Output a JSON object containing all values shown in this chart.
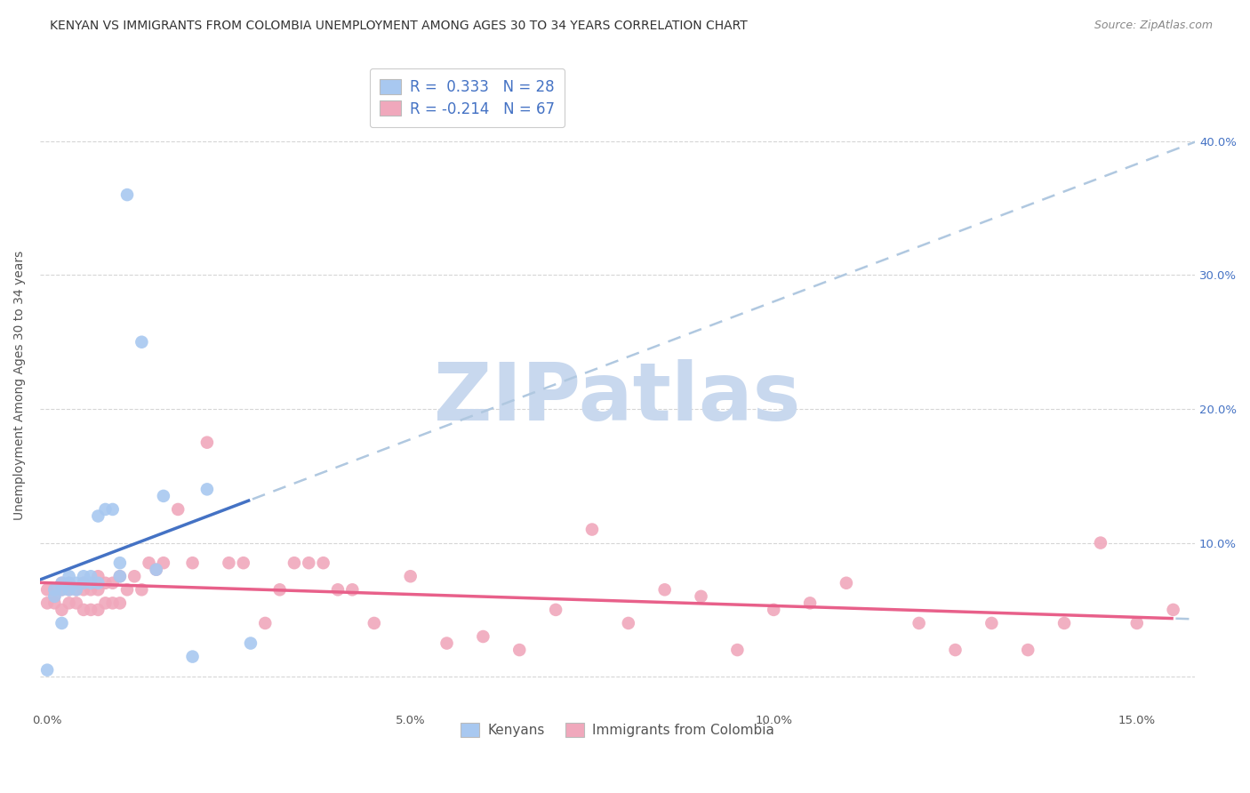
{
  "title": "KENYAN VS IMMIGRANTS FROM COLOMBIA UNEMPLOYMENT AMONG AGES 30 TO 34 YEARS CORRELATION CHART",
  "source": "Source: ZipAtlas.com",
  "ylabel": "Unemployment Among Ages 30 to 34 years",
  "xlim": [
    -0.001,
    0.158
  ],
  "ylim": [
    -0.025,
    0.46
  ],
  "xlabel_ticks": [
    0.0,
    0.05,
    0.1,
    0.15
  ],
  "xlabel_labels": [
    "0.0%",
    "5.0%",
    "10.0%",
    "15.0%"
  ],
  "ylabel_ticks": [
    0.0,
    0.1,
    0.2,
    0.3,
    0.4
  ],
  "ylabel_right_labels": [
    "",
    "10.0%",
    "20.0%",
    "30.0%",
    "40.0%"
  ],
  "kenyan_color": "#a8c8f0",
  "colombia_color": "#f0a8bc",
  "kenyan_line_color": "#4472c4",
  "colombia_line_color": "#e8608a",
  "dashed_line_color": "#b0c8e0",
  "title_fontsize": 10,
  "source_fontsize": 9,
  "axis_label_fontsize": 10,
  "tick_fontsize": 9.5,
  "legend_fontsize": 12,
  "legend_entry1": "R =  0.333   N = 28",
  "legend_entry2": "R = -0.214   N = 67",
  "kenyan_x": [
    0.0,
    0.001,
    0.001,
    0.002,
    0.002,
    0.002,
    0.003,
    0.003,
    0.003,
    0.004,
    0.004,
    0.005,
    0.005,
    0.006,
    0.006,
    0.007,
    0.007,
    0.008,
    0.009,
    0.01,
    0.01,
    0.011,
    0.013,
    0.015,
    0.016,
    0.02,
    0.022,
    0.028
  ],
  "kenyan_y": [
    0.005,
    0.06,
    0.065,
    0.04,
    0.065,
    0.07,
    0.065,
    0.07,
    0.075,
    0.065,
    0.07,
    0.07,
    0.075,
    0.07,
    0.075,
    0.07,
    0.12,
    0.125,
    0.125,
    0.075,
    0.085,
    0.36,
    0.25,
    0.08,
    0.135,
    0.015,
    0.14,
    0.025
  ],
  "colombia_x": [
    0.0,
    0.0,
    0.001,
    0.001,
    0.001,
    0.002,
    0.002,
    0.002,
    0.003,
    0.003,
    0.003,
    0.004,
    0.004,
    0.005,
    0.005,
    0.005,
    0.006,
    0.006,
    0.007,
    0.007,
    0.007,
    0.008,
    0.008,
    0.009,
    0.009,
    0.01,
    0.01,
    0.011,
    0.012,
    0.013,
    0.014,
    0.015,
    0.016,
    0.018,
    0.02,
    0.022,
    0.025,
    0.027,
    0.03,
    0.032,
    0.034,
    0.036,
    0.038,
    0.04,
    0.042,
    0.045,
    0.05,
    0.055,
    0.06,
    0.065,
    0.07,
    0.075,
    0.08,
    0.085,
    0.09,
    0.095,
    0.1,
    0.105,
    0.11,
    0.12,
    0.125,
    0.13,
    0.135,
    0.14,
    0.145,
    0.15,
    0.155
  ],
  "colombia_y": [
    0.055,
    0.065,
    0.055,
    0.06,
    0.065,
    0.05,
    0.065,
    0.07,
    0.055,
    0.065,
    0.07,
    0.055,
    0.065,
    0.05,
    0.065,
    0.07,
    0.05,
    0.065,
    0.05,
    0.065,
    0.075,
    0.055,
    0.07,
    0.055,
    0.07,
    0.055,
    0.075,
    0.065,
    0.075,
    0.065,
    0.085,
    0.08,
    0.085,
    0.125,
    0.085,
    0.175,
    0.085,
    0.085,
    0.04,
    0.065,
    0.085,
    0.085,
    0.085,
    0.065,
    0.065,
    0.04,
    0.075,
    0.025,
    0.03,
    0.02,
    0.05,
    0.11,
    0.04,
    0.065,
    0.06,
    0.02,
    0.05,
    0.055,
    0.07,
    0.04,
    0.02,
    0.04,
    0.02,
    0.04,
    0.1,
    0.04,
    0.05
  ],
  "kenyan_R": 0.333,
  "colombia_R": -0.214,
  "watermark_text": "ZIPatlas",
  "watermark_color": "#c8d8ee",
  "watermark_fontsize": 65
}
